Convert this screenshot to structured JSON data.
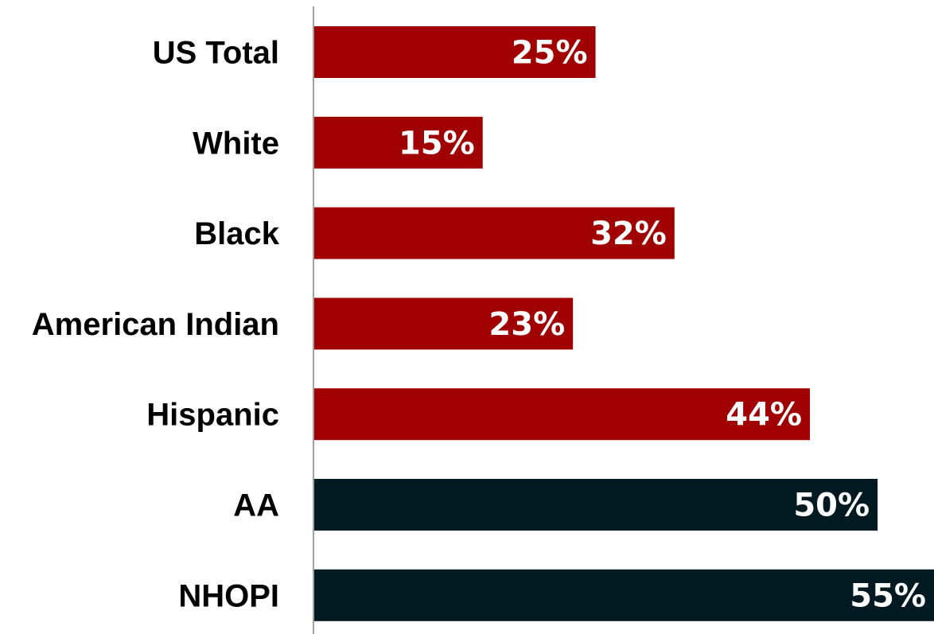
{
  "chart_data": {
    "type": "bar",
    "orientation": "horizontal",
    "categories": [
      "US Total",
      "White",
      "Black",
      "American Indian",
      "Hispanic",
      "AA",
      "NHOPI"
    ],
    "values": [
      25,
      15,
      32,
      23,
      44,
      50,
      55
    ],
    "value_labels": [
      "25%",
      "15%",
      "32%",
      "23%",
      "44%",
      "50%",
      "55%"
    ],
    "bar_colors": [
      "#a00000",
      "#a00000",
      "#a00000",
      "#a00000",
      "#a00000",
      "#011920",
      "#011920"
    ],
    "axis_color": "#a0a0a0",
    "xlim": [
      0,
      55
    ],
    "grid": false,
    "legend": "none",
    "title": "",
    "xlabel": "",
    "ylabel": ""
  }
}
